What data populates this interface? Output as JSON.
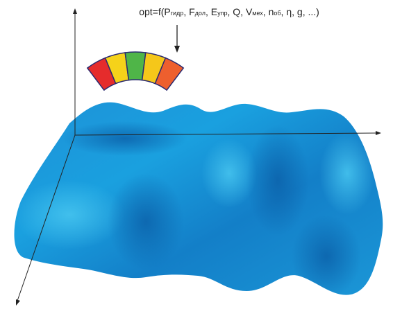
{
  "formula": {
    "lead": "opt=f(",
    "separator": ", ",
    "terms": [
      {
        "base": "P",
        "sub": "гидр"
      },
      {
        "base": "F",
        "sub": "дол"
      },
      {
        "base": "E",
        "sub": "упр"
      },
      {
        "base": "Q"
      },
      {
        "base": "V",
        "sub": "мех"
      },
      {
        "base": "n",
        "sub": "об"
      },
      {
        "base": "η"
      },
      {
        "base": "g"
      }
    ],
    "tail": ", ...)"
  }
}
